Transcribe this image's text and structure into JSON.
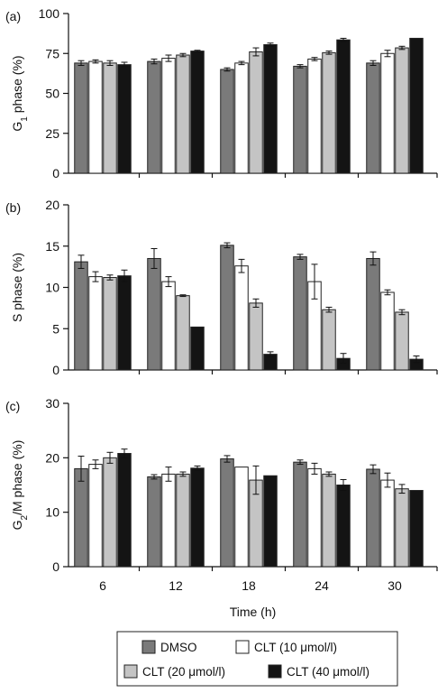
{
  "chart_data": [
    {
      "type": "bar",
      "panel_label": "(a)",
      "ylabel": "G1 phase (%)",
      "ylabel_main": "G",
      "ylabel_sub": "1",
      "ylabel_rest": " phase (%)",
      "ylim": [
        0,
        100
      ],
      "yticks": [
        "0",
        "25",
        "50",
        "75",
        "100"
      ],
      "categories": [
        "6",
        "12",
        "18",
        "24",
        "30"
      ],
      "series": [
        {
          "values": [
            69,
            70,
            65,
            67,
            69
          ],
          "errors": [
            1.5,
            1.5,
            1,
            1,
            1.5
          ]
        },
        {
          "values": [
            70,
            72,
            69,
            71.5,
            75
          ],
          "errors": [
            1,
            2,
            1,
            1,
            2
          ]
        },
        {
          "values": [
            69,
            74,
            76,
            75.5,
            78.5
          ],
          "errors": [
            1.5,
            1,
            2.5,
            1,
            1
          ]
        },
        {
          "values": [
            68,
            76.5,
            80.5,
            83.5,
            84.5
          ],
          "errors": [
            1.5,
            0.5,
            1,
            1,
            0
          ]
        }
      ]
    },
    {
      "type": "bar",
      "panel_label": "(b)",
      "ylabel": "S phase (%)",
      "ylabel_main": "S phase (%)",
      "ylabel_sub": "",
      "ylabel_rest": "",
      "ylim": [
        0,
        20
      ],
      "yticks": [
        "0",
        "5",
        "10",
        "15",
        "20"
      ],
      "categories": [
        "6",
        "12",
        "18",
        "24",
        "30"
      ],
      "series": [
        {
          "values": [
            13.1,
            13.5,
            15.1,
            13.7,
            13.5
          ],
          "errors": [
            0.8,
            1.2,
            0.3,
            0.3,
            0.8
          ]
        },
        {
          "values": [
            11.3,
            10.7,
            12.6,
            10.7,
            9.4
          ],
          "errors": [
            0.6,
            0.6,
            0.8,
            2.1,
            0.3
          ]
        },
        {
          "values": [
            11.2,
            9.0,
            8.1,
            7.3,
            7.0
          ],
          "errors": [
            0.3,
            0.1,
            0.5,
            0.3,
            0.3
          ]
        },
        {
          "values": [
            11.4,
            5.2,
            1.9,
            1.4,
            1.3
          ],
          "errors": [
            0.7,
            0,
            0.3,
            0.6,
            0.4
          ]
        }
      ]
    },
    {
      "type": "bar",
      "panel_label": "(c)",
      "ylabel": "G2/M phase (%)",
      "ylabel_main": "G",
      "ylabel_sub": "2",
      "ylabel_rest": "/M phase (%)",
      "ylim": [
        0,
        30
      ],
      "yticks": [
        "0",
        "10",
        "20",
        "30"
      ],
      "xlabel": "Time (h)",
      "categories": [
        "6",
        "12",
        "18",
        "24",
        "30"
      ],
      "series": [
        {
          "values": [
            18.0,
            16.5,
            19.8,
            19.2,
            17.9
          ],
          "errors": [
            2.3,
            0.4,
            0.6,
            0.4,
            0.8
          ]
        },
        {
          "values": [
            18.8,
            17.0,
            18.3,
            18.0,
            15.9
          ],
          "errors": [
            0.8,
            1.3,
            0,
            1.0,
            1.3
          ]
        },
        {
          "values": [
            20.0,
            17.0,
            15.9,
            17.0,
            14.3
          ],
          "errors": [
            1.0,
            0.4,
            2.6,
            0.4,
            0.8
          ]
        },
        {
          "values": [
            20.8,
            18.1,
            16.7,
            15.0,
            14.0
          ],
          "errors": [
            0.8,
            0.4,
            0,
            1.0,
            0
          ]
        }
      ]
    }
  ],
  "legend": {
    "placement": "bottom",
    "items": [
      {
        "label": "DMSO",
        "color": "#7a7a7a"
      },
      {
        "label": "CLT (10 μmol/l)",
        "color": "#ffffff"
      },
      {
        "label": "CLT (20 μmol/l)",
        "color": "#c4c4c4"
      },
      {
        "label": "CLT (40 μmol/l)",
        "color": "#141414"
      }
    ]
  },
  "colors": {
    "series": [
      "#7a7a7a",
      "#ffffff",
      "#c4c4c4",
      "#141414"
    ],
    "outline": "#222222",
    "axis": "#111111"
  }
}
